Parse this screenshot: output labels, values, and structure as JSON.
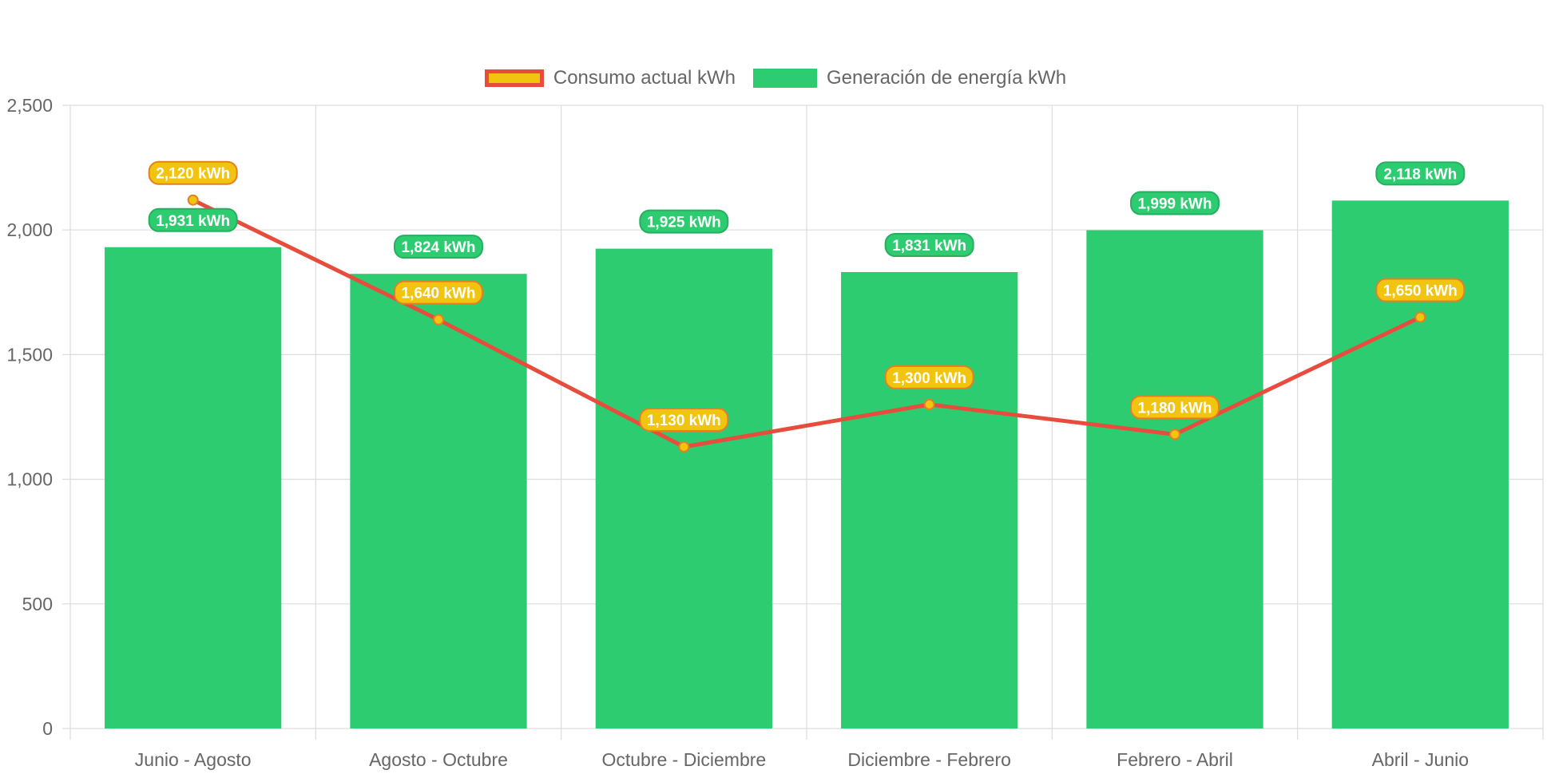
{
  "colors": {
    "bar": "#2ecc71",
    "bar_label_border": "#27ae60",
    "line": "#e74c3c",
    "point": "#f1c40f",
    "point_label_bg": "#f1c40f",
    "point_label_border": "#e67e22",
    "grid": "#dddddd",
    "axis_text": "#666666"
  },
  "chart_data": {
    "type": "bar",
    "categories": [
      "Junio - Agosto",
      "Agosto - Octubre",
      "Octubre - Diciembre",
      "Diciembre - Febrero",
      "Febrero - Abril",
      "Abril - Junio"
    ],
    "series": [
      {
        "name": "Consumo actual kWh",
        "type": "line",
        "values": [
          2120,
          1640,
          1130,
          1300,
          1180,
          1650
        ],
        "labels": [
          "2,120 kWh",
          "1,640 kWh",
          "1,130 kWh",
          "1,300 kWh",
          "1,180 kWh",
          "1,650 kWh"
        ]
      },
      {
        "name": "Generación de energía kWh",
        "type": "bar",
        "values": [
          1931,
          1824,
          1925,
          1831,
          1999,
          2118
        ],
        "labels": [
          "1,931 kWh",
          "1,824 kWh",
          "1,925 kWh",
          "1,831 kWh",
          "1,999 kWh",
          "2,118 kWh"
        ]
      }
    ],
    "ylim": [
      0,
      2500
    ],
    "yticks": [
      0,
      500,
      1000,
      1500,
      2000,
      2500
    ],
    "ytick_labels": [
      "0",
      "500",
      "1,000",
      "1,500",
      "2,000",
      "2,500"
    ],
    "grid": true,
    "legend_position": "top-center"
  }
}
